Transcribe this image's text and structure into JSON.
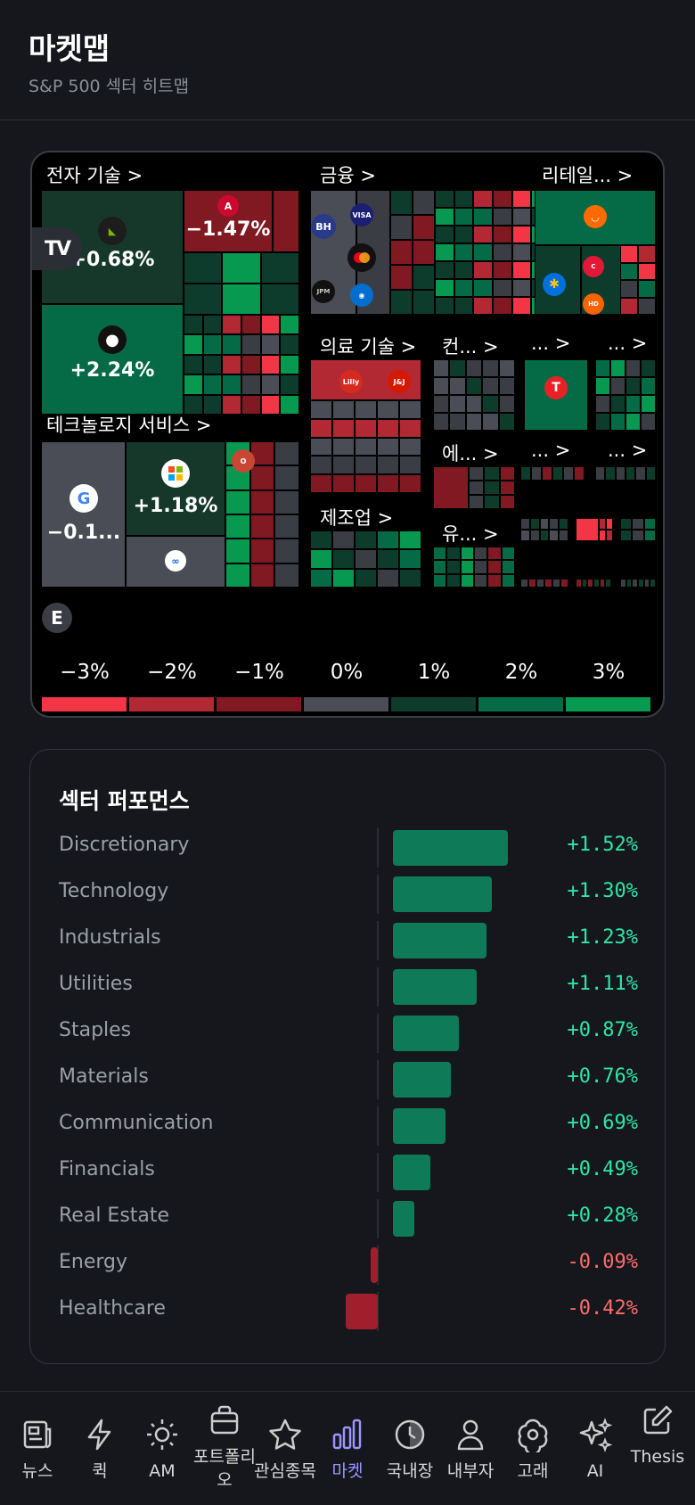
{
  "header": {
    "title": "마켓맵",
    "subtitle": "S&P 500 섹터 히트맵"
  },
  "heatmap": {
    "sector_labels": {
      "tech": "전자 기술 >",
      "finance": "금융 >",
      "retail": "리테일... >",
      "tech_services": "테크놀로지 서비스 >",
      "health_tech": "의료 기술 >",
      "consumer": "컨... >",
      "s1": "... >",
      "s2": "... >",
      "energy": "에... >",
      "s3": "... >",
      "s4": "... >",
      "manufacturing": "제조업 >",
      "utilities": "유... >"
    },
    "tiles": {
      "nvda": "+0.68%",
      "avgo": "−1.47%",
      "aapl": "+2.24%",
      "googl": "−0.1...",
      "msft": "+1.18%"
    },
    "logo_text": {
      "brk": "BH",
      "visa": "VISA",
      "jpm": "JPM",
      "lly": "Lilly",
      "jnj": "J&J"
    },
    "e_badge": "E",
    "scale": [
      "−3%",
      "−2%",
      "−1%",
      "0%",
      "1%",
      "2%",
      "3%"
    ],
    "scale_colors": [
      "#f23645",
      "#b22833",
      "#801922",
      "#4a4d55",
      "#0d3b2c",
      "#056b47",
      "#089950"
    ]
  },
  "performance": {
    "title": "섹터 퍼포먼스",
    "rows": [
      {
        "name": "Discretionary",
        "value": "+1.52%",
        "pct": 1.52
      },
      {
        "name": "Technology",
        "value": "+1.30%",
        "pct": 1.3
      },
      {
        "name": "Industrials",
        "value": "+1.23%",
        "pct": 1.23
      },
      {
        "name": "Utilities",
        "value": "+1.11%",
        "pct": 1.11
      },
      {
        "name": "Staples",
        "value": "+0.87%",
        "pct": 0.87
      },
      {
        "name": "Materials",
        "value": "+0.76%",
        "pct": 0.76
      },
      {
        "name": "Communication",
        "value": "+0.69%",
        "pct": 0.69
      },
      {
        "name": "Financials",
        "value": "+0.49%",
        "pct": 0.49
      },
      {
        "name": "Real Estate",
        "value": "+0.28%",
        "pct": 0.28
      },
      {
        "name": "Energy",
        "value": "-0.09%",
        "pct": -0.09
      },
      {
        "name": "Healthcare",
        "value": "-0.42%",
        "pct": -0.42
      }
    ],
    "colors": {
      "positive_bar": "#0f7a57",
      "negative_bar": "#a11f2c",
      "positive_text": "#2ee6a6",
      "negative_text": "#ff6b6b"
    }
  },
  "nav": {
    "items": [
      {
        "label": "뉴스",
        "icon": "news-icon"
      },
      {
        "label": "퀵",
        "icon": "lightning-icon"
      },
      {
        "label": "AM",
        "icon": "sun-icon"
      },
      {
        "label": "포트폴리오",
        "icon": "briefcase-icon"
      },
      {
        "label": "관심종목",
        "icon": "star-icon"
      },
      {
        "label": "마켓",
        "icon": "bar-chart-icon"
      },
      {
        "label": "국내장",
        "icon": "clock-icon"
      },
      {
        "label": "내부자",
        "icon": "person-icon"
      },
      {
        "label": "고래",
        "icon": "whale-icon"
      },
      {
        "label": "AI",
        "icon": "sparkles-icon"
      },
      {
        "label": "Thesis",
        "icon": "pen-icon"
      }
    ],
    "active_color": "#9b93ff"
  }
}
